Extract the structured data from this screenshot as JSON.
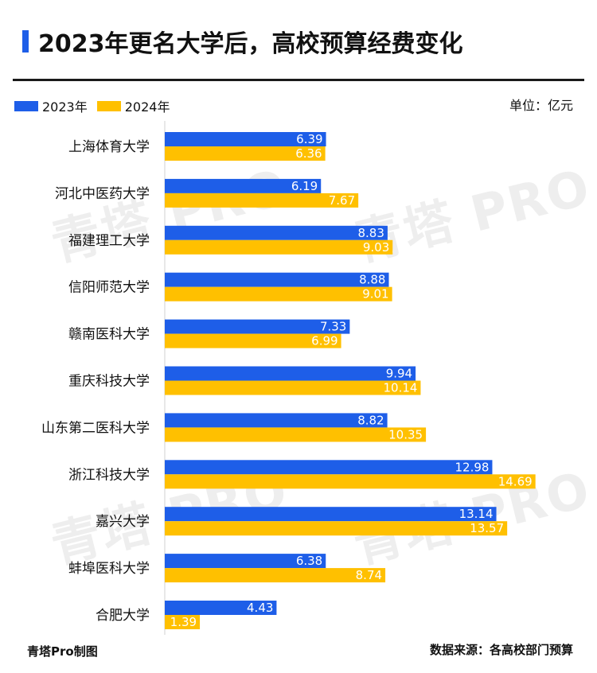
{
  "header": {
    "title": "2023年更名大学后，高校预算经费变化",
    "unit": "单位：亿元"
  },
  "legend": {
    "series_a": "2023年",
    "series_b": "2024年"
  },
  "colors": {
    "series_a": "#1e5ee8",
    "series_b": "#ffc000",
    "accent": "#1e5ee8"
  },
  "footer": {
    "left": "青塔Pro制图",
    "right": "数据来源：各高校部门预算"
  },
  "watermark": "青塔 PRO",
  "chart_data": {
    "type": "bar",
    "orientation": "horizontal",
    "categories": [
      "上海体育大学",
      "河北中医药大学",
      "福建理工大学",
      "信阳师范大学",
      "赣南医科大学",
      "重庆科技大学",
      "山东第二医科大学",
      "浙江科技大学",
      "嘉兴大学",
      "蚌埠医科大学",
      "合肥大学"
    ],
    "series": [
      {
        "name": "2023年",
        "values": [
          6.39,
          6.19,
          8.83,
          8.88,
          7.33,
          9.94,
          8.82,
          12.98,
          13.14,
          6.38,
          4.43
        ]
      },
      {
        "name": "2024年",
        "values": [
          6.36,
          7.67,
          9.03,
          9.01,
          6.99,
          10.14,
          10.35,
          14.69,
          13.57,
          8.74,
          1.39
        ]
      }
    ],
    "title": "2023年更名大学后，高校预算经费变化",
    "xlim": [
      0,
      16
    ],
    "grid": false,
    "legend_position": "top-left",
    "data_labels": "inside-end"
  }
}
